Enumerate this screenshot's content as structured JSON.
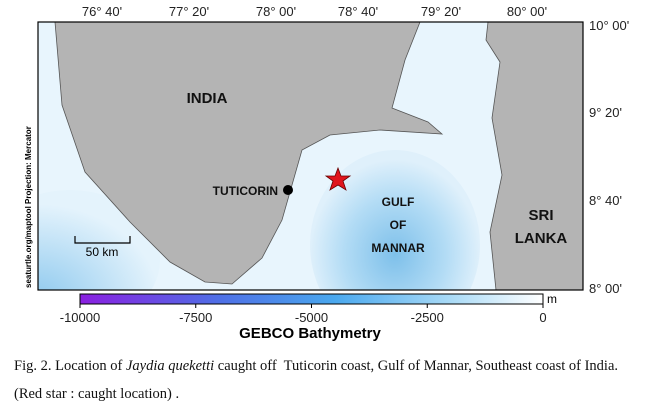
{
  "map": {
    "lon_labels": [
      "76° 40'",
      "77° 20'",
      "78° 00'",
      "78° 40'",
      "79° 20'",
      "80° 00'"
    ],
    "lat_labels": [
      "10° 00'",
      "9° 20'",
      "8° 40'",
      "8° 00'"
    ],
    "places": {
      "india": "INDIA",
      "tuticorin": "TUTICORIN",
      "gulf": [
        "GULF",
        "OF",
        "MANNAR"
      ],
      "sri_lanka": [
        "SRI",
        "LANKA"
      ]
    },
    "scale_bar": "50 km",
    "credit": "seaturtle.org/maptool Projection: Mercator"
  },
  "colorbar": {
    "title": "GEBCO Bathymetry",
    "unit": "m",
    "lim": [
      -10000,
      0
    ],
    "ticks": [
      -10000,
      -7500,
      -5000,
      -2500,
      0
    ]
  },
  "caption": {
    "prefix": "Fig. 2. Location of ",
    "species": "Jaydia queketti",
    "suffix": " caught off  Tuticorin coast, Gulf of Mannar, Southeast coast of India. (Red star : caught location) ."
  }
}
